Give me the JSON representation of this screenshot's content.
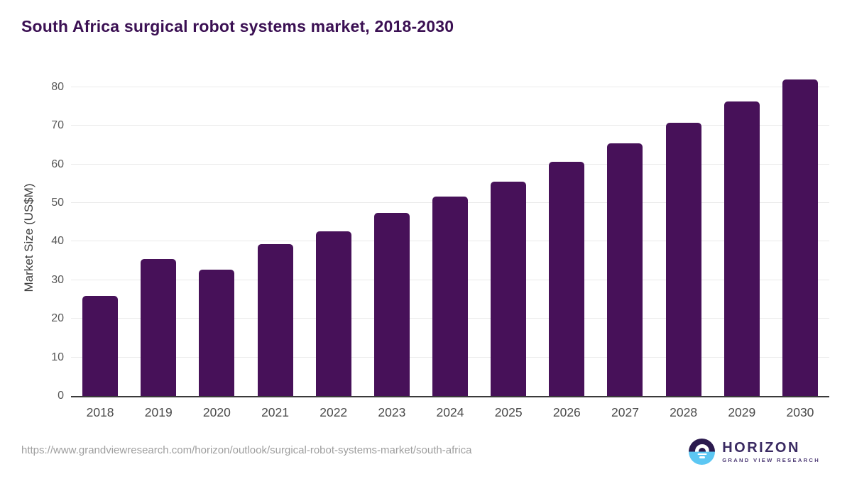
{
  "title": "South Africa surgical robot systems market, 2018-2030",
  "chart_data": {
    "type": "bar",
    "title": "South Africa surgical robot systems market, 2018-2030",
    "categories": [
      "2018",
      "2019",
      "2020",
      "2021",
      "2022",
      "2023",
      "2024",
      "2025",
      "2026",
      "2027",
      "2028",
      "2029",
      "2030"
    ],
    "values": [
      26.0,
      35.4,
      32.8,
      39.4,
      42.7,
      47.4,
      51.6,
      55.5,
      60.7,
      65.4,
      70.7,
      76.3,
      82.0
    ],
    "xlabel": "",
    "ylabel": "Market Size (US$M)",
    "ylim": [
      0,
      82
    ],
    "yticks": [
      0,
      10,
      20,
      30,
      40,
      50,
      60,
      70,
      80
    ],
    "grid": true,
    "legend": null,
    "bar_color": "#471159"
  },
  "colors": {
    "title_text": "#3b1053",
    "bar": "#471159",
    "gridline": "#eaeaea",
    "axis_line": "#3a3a3a",
    "tick_text": "#565656",
    "footer_text": "#9e9e9e",
    "logo_dark_half": "#2b1a4e",
    "logo_blue_half": "#5cc7f3",
    "logo_text": "#3a2a62"
  },
  "footer": {
    "source_url": "https://www.grandviewresearch.com/horizon/outlook/surgical-robot-systems-market/south-africa",
    "logo": {
      "brand": "HORIZON",
      "subbrand": "GRAND VIEW RESEARCH",
      "mark": "sun-over-horizon-icon"
    }
  }
}
